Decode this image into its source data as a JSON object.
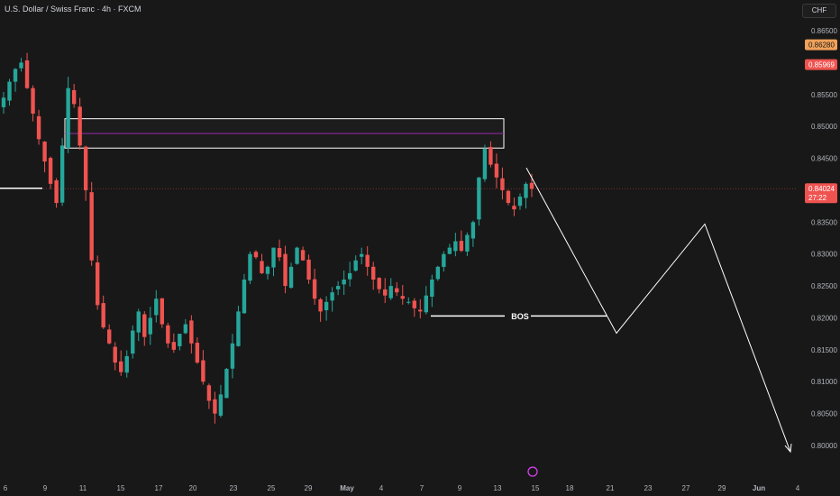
{
  "header": {
    "title": "U.S. Dollar / Swiss Franc · 4h · FXCM",
    "currency": "CHF"
  },
  "colors": {
    "background": "#181818",
    "up": "#26a69a",
    "down": "#ef5350",
    "zone": "#ffffff",
    "midline": "#9c27b0",
    "price_line": "#ef5350",
    "badge_orange": "#f0a15a"
  },
  "chart_data": {
    "type": "candlestick",
    "title": "U.S. Dollar / Swiss Franc · 4h · FXCM",
    "y_axis": {
      "range": [
        0.7955,
        0.8686
      ],
      "ticks": [
        "0.86500",
        "0.86000",
        "0.85500",
        "0.85000",
        "0.84500",
        "0.84000",
        "0.83500",
        "0.83000",
        "0.82500",
        "0.82000",
        "0.81500",
        "0.81000",
        "0.80500",
        "0.80000"
      ]
    },
    "x_axis": {
      "ticks": [
        "6",
        "9",
        "11",
        "15",
        "17",
        "20",
        "23",
        "25",
        "29",
        "May",
        "4",
        "7",
        "9",
        "13",
        "15",
        "18",
        "21",
        "23",
        "27",
        "29",
        "Jun",
        "4"
      ]
    },
    "price_badges": [
      {
        "label": "0.86280",
        "value": 0.8628,
        "style": "orange"
      },
      {
        "label": "0.85969",
        "value": 0.85969,
        "style": "red"
      }
    ],
    "last_price": {
      "value": 0.84024,
      "label": "0.84024",
      "countdown": "27:22"
    },
    "close_path": [
      0.8545,
      0.857,
      0.859,
      0.86,
      0.856,
      0.852,
      0.848,
      0.8445,
      0.841,
      0.838,
      0.847,
      0.856,
      0.8535,
      0.847,
      0.84,
      0.829,
      0.822,
      0.8185,
      0.816,
      0.813,
      0.8115,
      0.814,
      0.818,
      0.821,
      0.817,
      0.82,
      0.823,
      0.819,
      0.816,
      0.815,
      0.8175,
      0.819,
      0.816,
      0.813,
      0.81,
      0.807,
      0.805,
      0.808,
      0.812,
      0.816,
      0.821,
      0.826,
      0.83,
      0.8295,
      0.827,
      0.828,
      0.831,
      0.8295,
      0.825,
      0.828,
      0.831,
      0.829,
      0.826,
      0.823,
      0.821,
      0.8225,
      0.824,
      0.825,
      0.826,
      0.827,
      0.829,
      0.83,
      0.828,
      0.826,
      0.8245,
      0.8235,
      0.825,
      0.824,
      0.823,
      0.8225,
      0.8215,
      0.821,
      0.8235,
      0.826,
      0.828,
      0.83,
      0.831,
      0.832,
      0.8305,
      0.833,
      0.835,
      0.842,
      0.8465,
      0.844,
      0.842,
      0.84,
      0.838,
      0.837,
      0.839,
      0.841,
      0.8402
    ],
    "annotations": {
      "zone": {
        "low": 0.8466,
        "high": 0.8512,
        "mid": 0.8489
      },
      "support_left": 0.8403,
      "bos": {
        "label": "BOS",
        "value": 0.8203
      },
      "projection": [
        [
          0.8435,
          0
        ],
        [
          0.8176,
          1
        ],
        [
          0.8347,
          2
        ],
        [
          0.799,
          3
        ]
      ]
    }
  }
}
